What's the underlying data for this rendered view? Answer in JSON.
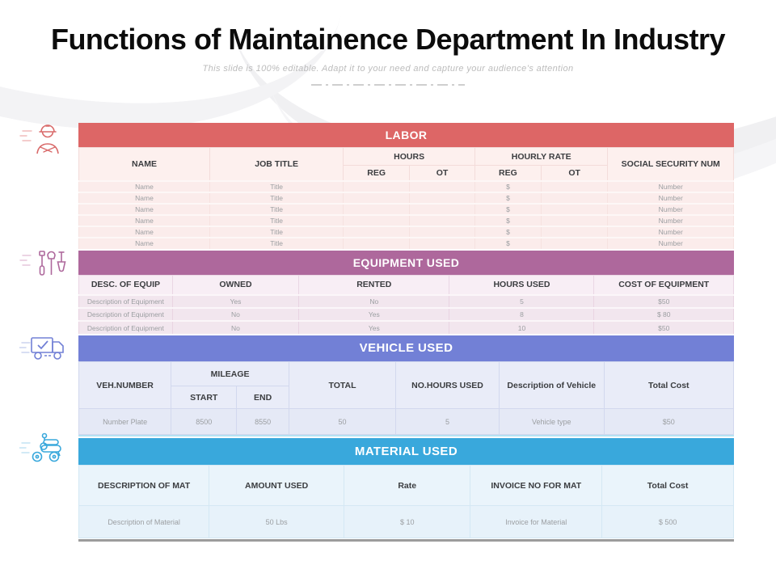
{
  "slide": {
    "title": "Functions of Maintainence Department In Industry",
    "subtitle": "This slide is 100% editable. Adapt it to your need and capture your audience’s attention"
  },
  "colors": {
    "labor_band": "#dd6666",
    "equipment_band": "#ae689c",
    "vehicle_band": "#7280d6",
    "material_band": "#39a8dc",
    "header_text": "#3b3d40",
    "data_text": "#9b9ea1"
  },
  "icons": {
    "labor": "worker-icon",
    "equipment": "tools-icon",
    "vehicle": "delivery-truck-icon",
    "material": "scooter-icon"
  },
  "sections": {
    "labor": {
      "band": "LABOR",
      "columns": {
        "name": "NAME",
        "job_title": "JOB TITLE",
        "hours": "HOURS",
        "hourly_rate": "HOURLY RATE",
        "reg": "REG",
        "ot": "OT",
        "ssn": "SOCIAL SECURITY NUM"
      },
      "rows": [
        [
          "Name",
          "Title",
          "",
          "",
          "$",
          "",
          "Number"
        ],
        [
          "Name",
          "Title",
          "",
          "",
          "$",
          "",
          "Number"
        ],
        [
          "Name",
          "Title",
          "",
          "",
          "$",
          "",
          "Number"
        ],
        [
          "Name",
          "Title",
          "",
          "",
          "$",
          "",
          "Number"
        ],
        [
          "Name",
          "Title",
          "",
          "",
          "$",
          "",
          "Number"
        ],
        [
          "Name",
          "Title",
          "",
          "",
          "$",
          "",
          "Number"
        ]
      ]
    },
    "equipment": {
      "band": "EQUIPMENT USED",
      "columns": [
        "DESC. OF EQUIP",
        "OWNED",
        "RENTED",
        "HOURS USED",
        "COST OF EQUIPMENT"
      ],
      "rows": [
        [
          "Description of Equipment",
          "Yes",
          "No",
          "5",
          "$50"
        ],
        [
          "Description of Equipment",
          "No",
          "Yes",
          "8",
          "$ 80"
        ],
        [
          "Description of Equipment",
          "No",
          "Yes",
          "10",
          "$50"
        ]
      ]
    },
    "vehicle": {
      "band": "VEHICLE USED",
      "columns": {
        "veh_number": "VEH.NUMBER",
        "mileage": "MILEAGE",
        "start": "START",
        "end": "END",
        "total": "TOTAL",
        "no_hours_used": "NO.HOURS USED",
        "description": "Description of Vehicle",
        "total_cost": "Total Cost"
      },
      "rows": [
        [
          "Number Plate",
          "8500",
          "8550",
          "50",
          "5",
          "Vehicle type",
          "$50"
        ]
      ]
    },
    "material": {
      "band": "MATERIAL USED",
      "columns": [
        "DESCRIPTION OF MAT",
        "AMOUNT USED",
        "Rate",
        "INVOICE NO FOR MAT",
        "Total Cost"
      ],
      "rows": [
        [
          "Description  of Material",
          "50 Lbs",
          "$ 10",
          "Invoice  for Material",
          "$ 500"
        ]
      ]
    }
  }
}
